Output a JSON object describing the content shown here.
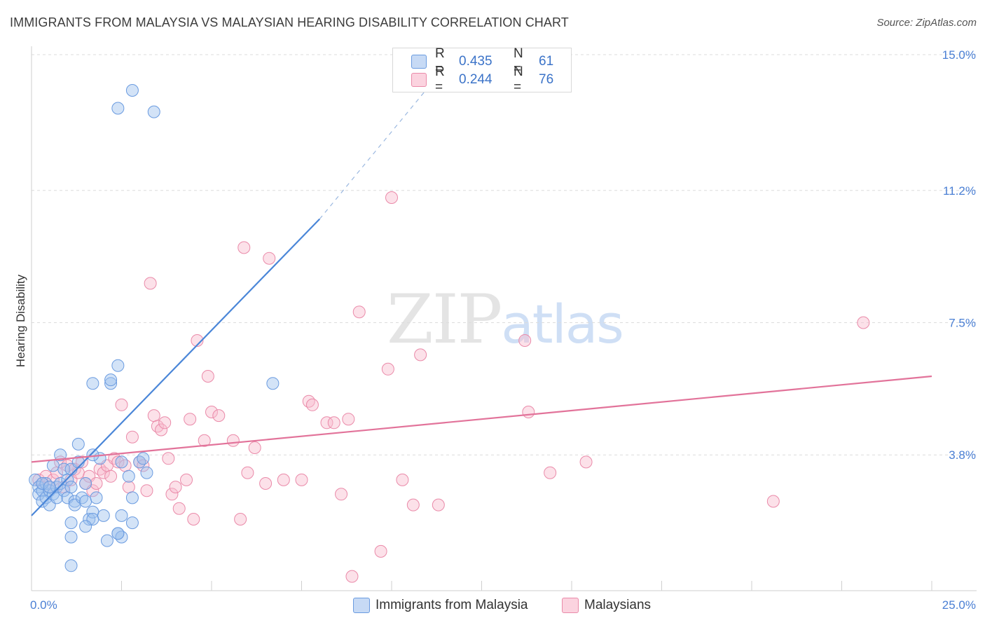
{
  "title": "IMMIGRANTS FROM MALAYSIA VS MALAYSIAN HEARING DISABILITY CORRELATION CHART",
  "source": "Source: ZipAtlas.com",
  "watermark": {
    "zip": "ZIP",
    "atlas": "atlas"
  },
  "legend": {
    "r_label": "R =",
    "n_label": "N =",
    "series": [
      {
        "name": "Immigrants from Malaysia",
        "r": "0.435",
        "n": "61",
        "fill": "#a9c7f0",
        "stroke": "#6a9be0"
      },
      {
        "name": "Malaysians",
        "r": "0.244",
        "n": "76",
        "fill": "#f9c3d3",
        "stroke": "#ea8aa9"
      }
    ]
  },
  "chart_data": {
    "type": "scatter",
    "xlabel": "",
    "ylabel": "Hearing Disability",
    "xlim": [
      0,
      25
    ],
    "ylim": [
      0,
      15
    ],
    "x_tick_labels": [
      "0.0%",
      "25.0%"
    ],
    "y_ticks": [
      3.8,
      7.5,
      11.2,
      15.0
    ],
    "y_tick_labels": [
      "3.8%",
      "7.5%",
      "11.2%",
      "15.0%"
    ],
    "grid": true,
    "series": [
      {
        "name": "Immigrants from Malaysia",
        "color": "#4a86d8",
        "trend": {
          "x": [
            0,
            8.0
          ],
          "y": [
            2.1,
            10.4
          ],
          "extend_to": [
            11.6,
            14.8
          ]
        },
        "points": [
          [
            0.1,
            3.1
          ],
          [
            0.2,
            2.9
          ],
          [
            0.2,
            2.7
          ],
          [
            0.3,
            2.8
          ],
          [
            0.3,
            2.5
          ],
          [
            0.4,
            3.0
          ],
          [
            0.4,
            2.6
          ],
          [
            0.5,
            2.8
          ],
          [
            0.5,
            2.4
          ],
          [
            0.6,
            2.7
          ],
          [
            0.6,
            3.5
          ],
          [
            0.7,
            2.9
          ],
          [
            0.7,
            2.6
          ],
          [
            0.8,
            3.0
          ],
          [
            0.8,
            3.8
          ],
          [
            0.9,
            2.8
          ],
          [
            0.9,
            3.4
          ],
          [
            1.0,
            2.6
          ],
          [
            1.0,
            3.1
          ],
          [
            1.1,
            2.9
          ],
          [
            1.1,
            3.4
          ],
          [
            1.2,
            2.5
          ],
          [
            1.2,
            2.4
          ],
          [
            1.3,
            4.1
          ],
          [
            1.3,
            3.6
          ],
          [
            1.4,
            2.6
          ],
          [
            1.5,
            2.5
          ],
          [
            1.6,
            2.0
          ],
          [
            1.7,
            2.2
          ],
          [
            1.7,
            2.0
          ],
          [
            1.8,
            2.6
          ],
          [
            1.9,
            3.7
          ],
          [
            2.0,
            2.1
          ],
          [
            2.1,
            1.4
          ],
          [
            1.1,
            1.9
          ],
          [
            1.1,
            1.5
          ],
          [
            1.1,
            0.7
          ],
          [
            2.4,
            1.6
          ],
          [
            2.5,
            1.5
          ],
          [
            2.5,
            2.1
          ],
          [
            2.7,
            3.2
          ],
          [
            2.4,
            6.3
          ],
          [
            2.2,
            5.8
          ],
          [
            1.7,
            5.8
          ],
          [
            2.2,
            5.9
          ],
          [
            1.7,
            3.8
          ],
          [
            2.5,
            3.6
          ],
          [
            2.8,
            1.9
          ],
          [
            2.8,
            2.6
          ],
          [
            3.0,
            3.6
          ],
          [
            3.2,
            3.3
          ],
          [
            2.4,
            1.6
          ],
          [
            1.5,
            1.8
          ],
          [
            3.1,
            3.7
          ],
          [
            2.4,
            13.5
          ],
          [
            2.8,
            14.0
          ],
          [
            3.4,
            13.4
          ],
          [
            6.7,
            5.8
          ],
          [
            0.3,
            3.0
          ],
          [
            0.5,
            2.9
          ],
          [
            1.5,
            3.0
          ]
        ]
      },
      {
        "name": "Malaysians",
        "color": "#e2739a",
        "trend": {
          "x": [
            0,
            25
          ],
          "y": [
            3.6,
            6.0
          ]
        },
        "points": [
          [
            0.2,
            3.1
          ],
          [
            0.3,
            3.0
          ],
          [
            0.4,
            3.2
          ],
          [
            0.5,
            2.9
          ],
          [
            0.6,
            3.1
          ],
          [
            0.7,
            3.3
          ],
          [
            0.8,
            3.6
          ],
          [
            0.9,
            2.9
          ],
          [
            1.0,
            3.5
          ],
          [
            1.1,
            3.1
          ],
          [
            1.2,
            3.4
          ],
          [
            1.3,
            3.3
          ],
          [
            1.4,
            3.6
          ],
          [
            1.5,
            3.0
          ],
          [
            1.6,
            3.2
          ],
          [
            1.7,
            2.8
          ],
          [
            1.8,
            3.0
          ],
          [
            1.9,
            3.4
          ],
          [
            2.0,
            3.3
          ],
          [
            2.1,
            3.5
          ],
          [
            2.2,
            3.2
          ],
          [
            2.3,
            3.7
          ],
          [
            2.4,
            3.6
          ],
          [
            2.5,
            5.2
          ],
          [
            2.6,
            3.5
          ],
          [
            2.7,
            2.9
          ],
          [
            2.8,
            4.3
          ],
          [
            3.0,
            3.6
          ],
          [
            3.1,
            3.5
          ],
          [
            3.2,
            2.8
          ],
          [
            3.3,
            8.6
          ],
          [
            3.4,
            4.9
          ],
          [
            3.5,
            4.6
          ],
          [
            3.6,
            4.5
          ],
          [
            3.7,
            4.7
          ],
          [
            3.8,
            3.7
          ],
          [
            3.9,
            2.7
          ],
          [
            4.0,
            2.9
          ],
          [
            4.1,
            2.3
          ],
          [
            4.3,
            3.1
          ],
          [
            4.4,
            4.8
          ],
          [
            4.5,
            2.0
          ],
          [
            4.6,
            7.0
          ],
          [
            4.8,
            4.2
          ],
          [
            4.9,
            6.0
          ],
          [
            5.0,
            5.0
          ],
          [
            5.2,
            4.9
          ],
          [
            5.6,
            4.2
          ],
          [
            5.8,
            2.0
          ],
          [
            5.9,
            9.6
          ],
          [
            6.0,
            3.3
          ],
          [
            6.2,
            4.0
          ],
          [
            6.5,
            3.0
          ],
          [
            6.6,
            9.3
          ],
          [
            7.0,
            3.1
          ],
          [
            7.5,
            3.1
          ],
          [
            7.7,
            5.3
          ],
          [
            7.8,
            5.2
          ],
          [
            8.2,
            4.7
          ],
          [
            8.4,
            4.7
          ],
          [
            8.6,
            2.7
          ],
          [
            8.8,
            4.8
          ],
          [
            8.9,
            0.4
          ],
          [
            9.1,
            7.8
          ],
          [
            9.7,
            1.1
          ],
          [
            9.9,
            6.2
          ],
          [
            10.0,
            11.0
          ],
          [
            10.3,
            3.1
          ],
          [
            10.6,
            2.4
          ],
          [
            10.8,
            6.6
          ],
          [
            11.3,
            2.4
          ],
          [
            13.7,
            7.0
          ],
          [
            13.8,
            5.0
          ],
          [
            14.4,
            3.3
          ],
          [
            15.4,
            3.6
          ],
          [
            20.6,
            2.5
          ],
          [
            23.1,
            7.5
          ]
        ]
      }
    ]
  }
}
